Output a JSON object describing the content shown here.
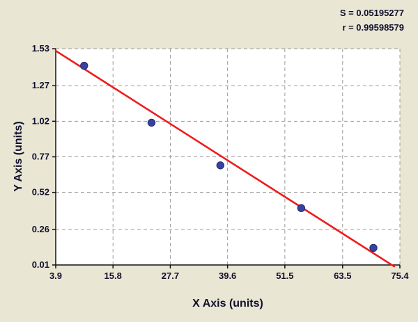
{
  "stats": {
    "s": "S = 0.05195277",
    "r": "r = 0.99598579"
  },
  "chart_data": {
    "type": "scatter",
    "title": "",
    "xlabel": "X Axis (units)",
    "ylabel": "Y Axis (units)",
    "xlim": [
      3.9,
      75.4
    ],
    "ylim": [
      0.01,
      1.53
    ],
    "x_ticks": [
      3.9,
      15.8,
      27.7,
      39.6,
      51.5,
      63.5,
      75.4
    ],
    "x_tick_labels": [
      "3.9",
      "15.8",
      "27.7",
      "39.6",
      "51.5",
      "63.5",
      "75.4"
    ],
    "y_ticks": [
      0.01,
      0.26,
      0.52,
      0.77,
      1.02,
      1.27,
      1.53
    ],
    "y_tick_labels": [
      "0.01",
      "0.26",
      "0.52",
      "0.77",
      "1.02",
      "1.27",
      "1.53"
    ],
    "points": [
      [
        9.8,
        1.41
      ],
      [
        23.8,
        1.01
      ],
      [
        38.1,
        0.71
      ],
      [
        54.9,
        0.41
      ],
      [
        69.9,
        0.13
      ]
    ],
    "trendline": {
      "x": [
        3.9,
        74.2
      ],
      "y": [
        1.515,
        0.0
      ]
    },
    "grid": "dashed",
    "legend": "none",
    "annotations": [
      "S = 0.05195277",
      "r = 0.99598579"
    ],
    "colors": {
      "point": "#3742a0",
      "point_edge": "#222a6e",
      "line": "#ee1c1c",
      "background": "#eae6d4",
      "plot_bg": "#ffffff",
      "grid": "#9a9a9a",
      "axis": "#111111",
      "text": "#10102e"
    }
  }
}
